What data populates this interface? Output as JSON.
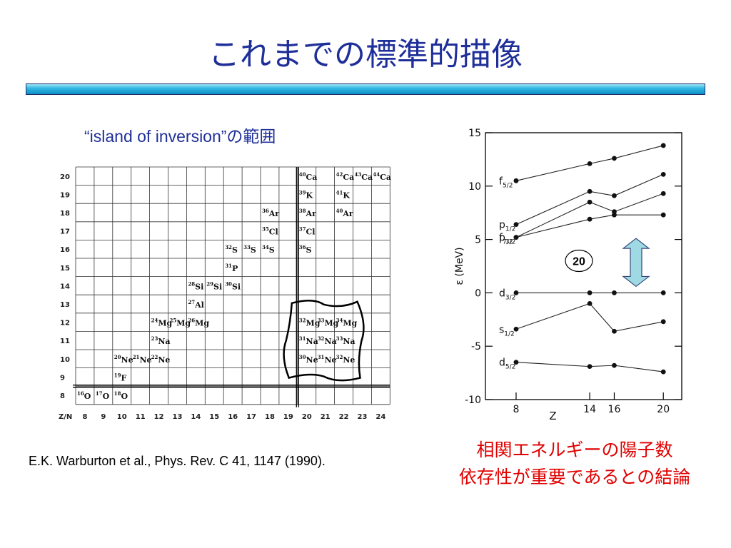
{
  "slide": {
    "title": "これまでの標準的描像",
    "subtitle": "“island of inversion”の範囲",
    "citation": "E.K. Warburton et al., Phys. Rev. C 41, 1147 (1990).",
    "conclusion_line1": "相関エネルギーの陽子数",
    "conclusion_line2": "依存性が重要であるとの結論"
  },
  "chart_data": [
    {
      "type": "table",
      "x_axis_label": "Z/N",
      "n_values": [
        "8",
        "9",
        "10",
        "11",
        "12",
        "13",
        "14",
        "15",
        "16",
        "17",
        "18",
        "19",
        "20",
        "21",
        "22",
        "23",
        "24"
      ],
      "z_values": [
        "8",
        "9",
        "10",
        "11",
        "12",
        "13",
        "14",
        "15",
        "16",
        "17",
        "18",
        "19",
        "20"
      ],
      "nuclei": [
        {
          "mass": "16",
          "sym": "O",
          "z": 8,
          "n": 8
        },
        {
          "mass": "17",
          "sym": "O",
          "z": 8,
          "n": 9
        },
        {
          "mass": "18",
          "sym": "O",
          "z": 8,
          "n": 10
        },
        {
          "mass": "19",
          "sym": "F",
          "z": 9,
          "n": 10
        },
        {
          "mass": "20",
          "sym": "Ne",
          "z": 10,
          "n": 10
        },
        {
          "mass": "21",
          "sym": "Ne",
          "z": 10,
          "n": 11
        },
        {
          "mass": "22",
          "sym": "Ne",
          "z": 10,
          "n": 12
        },
        {
          "mass": "23",
          "sym": "Na",
          "z": 11,
          "n": 12
        },
        {
          "mass": "24",
          "sym": "Mg",
          "z": 12,
          "n": 12
        },
        {
          "mass": "25",
          "sym": "Mg",
          "z": 12,
          "n": 13
        },
        {
          "mass": "26",
          "sym": "Mg",
          "z": 12,
          "n": 14
        },
        {
          "mass": "27",
          "sym": "Al",
          "z": 13,
          "n": 14
        },
        {
          "mass": "28",
          "sym": "Si",
          "z": 14,
          "n": 14
        },
        {
          "mass": "29",
          "sym": "Si",
          "z": 14,
          "n": 15
        },
        {
          "mass": "30",
          "sym": "Si",
          "z": 14,
          "n": 16
        },
        {
          "mass": "31",
          "sym": "P",
          "z": 15,
          "n": 16
        },
        {
          "mass": "32",
          "sym": "S",
          "z": 16,
          "n": 16
        },
        {
          "mass": "33",
          "sym": "S",
          "z": 16,
          "n": 17
        },
        {
          "mass": "34",
          "sym": "S",
          "z": 16,
          "n": 18
        },
        {
          "mass": "35",
          "sym": "Cl",
          "z": 17,
          "n": 18
        },
        {
          "mass": "36",
          "sym": "Ar",
          "z": 18,
          "n": 18
        },
        {
          "mass": "36",
          "sym": "S",
          "z": 16,
          "n": 20
        },
        {
          "mass": "37",
          "sym": "Cl",
          "z": 17,
          "n": 20
        },
        {
          "mass": "38",
          "sym": "Ar",
          "z": 18,
          "n": 20
        },
        {
          "mass": "39",
          "sym": "K",
          "z": 19,
          "n": 20
        },
        {
          "mass": "40",
          "sym": "Ca",
          "z": 20,
          "n": 20
        },
        {
          "mass": "40",
          "sym": "Ar",
          "z": 18,
          "n": 22
        },
        {
          "mass": "41",
          "sym": "K",
          "z": 19,
          "n": 22
        },
        {
          "mass": "42",
          "sym": "Ca",
          "z": 20,
          "n": 22
        },
        {
          "mass": "43",
          "sym": "Ca",
          "z": 20,
          "n": 23
        },
        {
          "mass": "44",
          "sym": "Ca",
          "z": 20,
          "n": 24
        },
        {
          "mass": "30",
          "sym": "Ne",
          "z": 10,
          "n": 20
        },
        {
          "mass": "31",
          "sym": "Ne",
          "z": 10,
          "n": 21
        },
        {
          "mass": "32",
          "sym": "Ne",
          "z": 10,
          "n": 22
        },
        {
          "mass": "31",
          "sym": "Na",
          "z": 11,
          "n": 20
        },
        {
          "mass": "32",
          "sym": "Na",
          "z": 11,
          "n": 21
        },
        {
          "mass": "33",
          "sym": "Na",
          "z": 11,
          "n": 22
        },
        {
          "mass": "32",
          "sym": "Mg",
          "z": 12,
          "n": 20
        },
        {
          "mass": "33",
          "sym": "Mg",
          "z": 12,
          "n": 21
        },
        {
          "mass": "34",
          "sym": "Mg",
          "z": 12,
          "n": 22
        }
      ],
      "island_region": {
        "n_min": 20,
        "n_max": 22,
        "z_min": 10,
        "z_max": 12
      },
      "magic_lines": {
        "n": 20,
        "z": 8
      }
    },
    {
      "type": "line",
      "xlabel": "Z",
      "ylabel": "ε (MeV)",
      "x": [
        8,
        14,
        16,
        20
      ],
      "xlim": [
        5.5,
        21.5
      ],
      "ylim": [
        -10,
        15
      ],
      "yticks": [
        15,
        10,
        5,
        0,
        -5,
        -10
      ],
      "series": [
        {
          "name": "f5/2",
          "main": "f",
          "sub": "5/2",
          "values": [
            10.5,
            12.1,
            12.6,
            13.8
          ]
        },
        {
          "name": "p1/2",
          "main": "p",
          "sub": "1/2",
          "values": [
            6.4,
            9.5,
            9.1,
            11.1
          ]
        },
        {
          "name": "p3/2",
          "main": "p",
          "sub": "3/2",
          "values": [
            5.2,
            8.5,
            7.6,
            9.3
          ]
        },
        {
          "name": "f7/2",
          "main": "f",
          "sub": "7/2",
          "values": [
            5.2,
            6.9,
            7.3,
            7.3
          ]
        },
        {
          "name": "d3/2",
          "main": "d",
          "sub": "3/2",
          "values": [
            0,
            0,
            0,
            0
          ]
        },
        {
          "name": "s1/2",
          "main": "s",
          "sub": "1/2",
          "values": [
            -3.4,
            -1.0,
            -3.6,
            -2.7
          ]
        },
        {
          "name": "d5/2",
          "main": "d",
          "sub": "5/2",
          "values": [
            -6.5,
            -6.9,
            -6.8,
            -7.4
          ]
        }
      ],
      "gap_annotation": "20",
      "arrow_color": "#9fd9e3"
    }
  ]
}
